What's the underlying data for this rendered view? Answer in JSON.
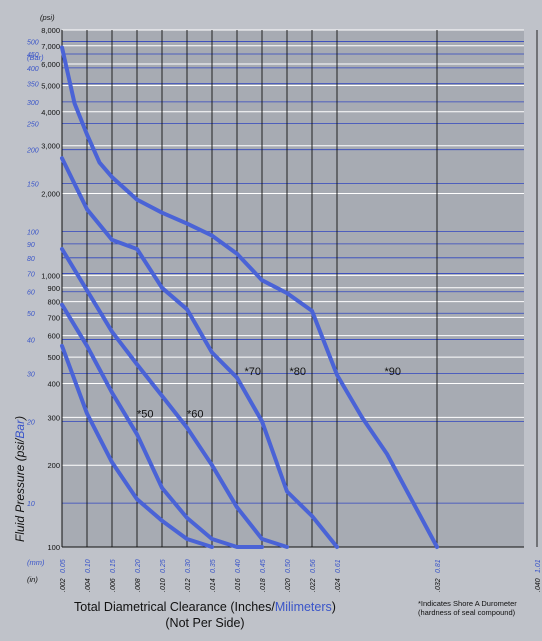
{
  "chart_data": {
    "type": "line",
    "y_axis": {
      "label_prefix": "Fluid Pressure (",
      "label_psi": "psi/",
      "label_bar": "Bar",
      "label_suffix": ")",
      "psi_unit": "(psi)",
      "bar_unit": "(Bar)",
      "psi_ticks": [
        "100",
        "200",
        "300",
        "400",
        "500",
        "600",
        "700",
        "800",
        "900",
        "1,000",
        "2,000",
        "3,000",
        "4,000",
        "5,000",
        "6,000",
        "7,000",
        "8,000"
      ],
      "bar_ticks": [
        "10",
        "20",
        "30",
        "40",
        "50",
        "60",
        "70",
        "80",
        "90",
        "100",
        "150",
        "200",
        "250",
        "300",
        "350",
        "400",
        "450",
        "500"
      ]
    },
    "x_axis": {
      "mm_unit": "(mm)",
      "in_unit": "(in)",
      "inch_ticks": [
        ".002",
        ".004",
        ".006",
        ".008",
        ".010",
        ".012",
        ".014",
        ".016",
        ".018",
        ".020",
        ".022",
        ".024",
        ".032",
        ".040"
      ],
      "mm_ticks": [
        "0.05",
        "0.10",
        "0.15",
        "0.20",
        "0.25",
        "0.30",
        "0.35",
        "0.40",
        "0.45",
        "0.50",
        "0.56",
        "0.61",
        "0.81",
        "1.01"
      ],
      "label_main": "Total Diametrical Clearance (Inches/",
      "label_mm": "Milimeters",
      "label_close": ")",
      "label_line2": "(Not Per Side)"
    },
    "series": [
      {
        "name": "*50",
        "x": [
          0.002,
          0.004,
          0.006,
          0.008,
          0.01,
          0.012,
          0.014
        ],
        "y": [
          550,
          310,
          205,
          150,
          125,
          107,
          100
        ]
      },
      {
        "name": "*60",
        "x": [
          0.002,
          0.004,
          0.006,
          0.008,
          0.01,
          0.012,
          0.014,
          0.016,
          0.018
        ],
        "y": [
          780,
          550,
          370,
          260,
          165,
          128,
          107,
          100,
          100
        ]
      },
      {
        "name": "*70",
        "x": [
          0.002,
          0.004,
          0.006,
          0.008,
          0.01,
          0.012,
          0.014,
          0.016,
          0.018,
          0.02
        ],
        "y": [
          1250,
          880,
          620,
          470,
          360,
          275,
          200,
          140,
          107,
          100
        ]
      },
      {
        "name": "*80",
        "x": [
          0.002,
          0.004,
          0.006,
          0.008,
          0.01,
          0.012,
          0.014,
          0.016,
          0.018,
          0.02,
          0.022,
          0.024
        ],
        "y": [
          2700,
          1750,
          1350,
          1250,
          900,
          750,
          520,
          420,
          290,
          160,
          130,
          100
        ]
      },
      {
        "name": "*90",
        "x": [
          0.002,
          0.003,
          0.004,
          0.005,
          0.006,
          0.008,
          0.01,
          0.012,
          0.014,
          0.016,
          0.018,
          0.02,
          0.022,
          0.024,
          0.026,
          0.028,
          0.032
        ],
        "y": [
          6900,
          4300,
          3300,
          2600,
          2300,
          1900,
          1700,
          1550,
          1400,
          1200,
          960,
          860,
          740,
          430,
          300,
          220,
          100
        ]
      }
    ]
  },
  "footnote": {
    "line1": "*Indicates Shore A Durometer",
    "line2": "(hardness of seal compound)"
  }
}
